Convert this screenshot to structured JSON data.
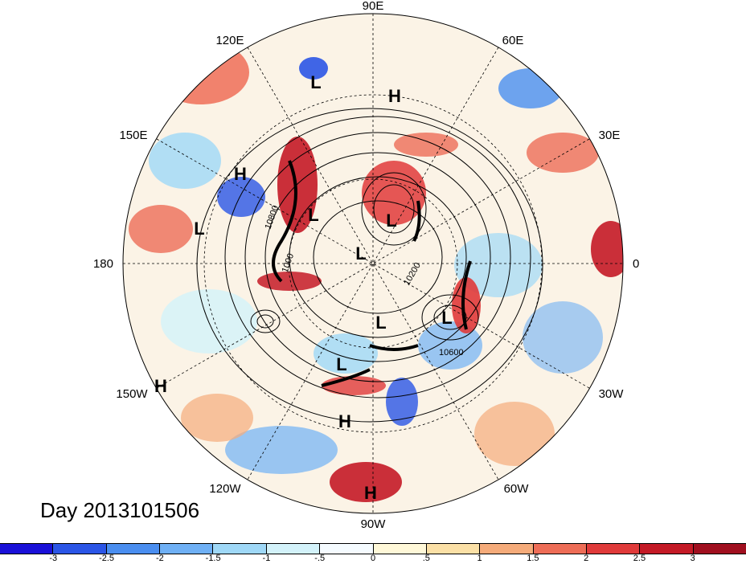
{
  "map": {
    "projection": "north-polar-stereographic",
    "longitude_labels": [
      "90E",
      "60E",
      "30E",
      "0",
      "30W",
      "60W",
      "90W",
      "120W",
      "150W",
      "180",
      "150E",
      "120E"
    ],
    "contour_labels": [
      "10600",
      "10800",
      "1000",
      "10200"
    ],
    "pressure_centers": [
      {
        "type": "L"
      },
      {
        "type": "H"
      },
      {
        "type": "H"
      },
      {
        "type": "L"
      },
      {
        "type": "L"
      },
      {
        "type": "L"
      },
      {
        "type": "L"
      },
      {
        "type": "L"
      },
      {
        "type": "L"
      },
      {
        "type": "L"
      },
      {
        "type": "H"
      },
      {
        "type": "H"
      },
      {
        "type": "H"
      }
    ]
  },
  "title": "Day 2013101506",
  "colorbar": {
    "ticks": [
      "-3",
      "-2.5",
      "-2",
      "-1.5",
      "-1",
      "-.5",
      "0",
      ".5",
      "1",
      "1.5",
      "2",
      "2.5",
      "3"
    ],
    "colors": [
      "#1a10d8",
      "#2b55e6",
      "#4a8ef0",
      "#6fb0f5",
      "#9fd8f7",
      "#d3f2fa",
      "#f5fbff",
      "#fff8d8",
      "#fbe0a6",
      "#f5ab7a",
      "#ee6d57",
      "#e03a3a",
      "#c41a26",
      "#a00f1f"
    ]
  }
}
